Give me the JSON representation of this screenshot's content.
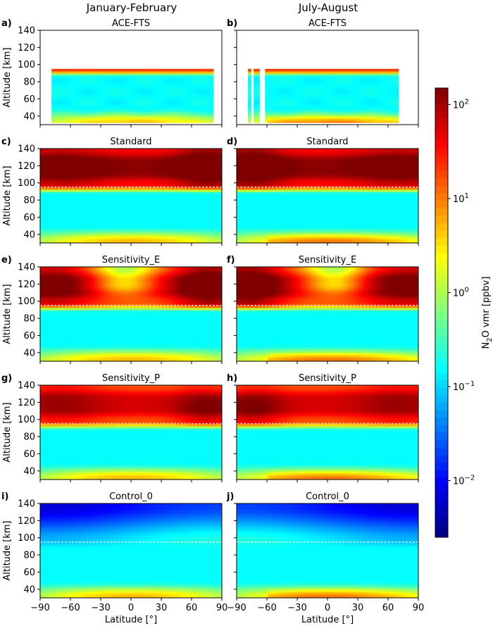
{
  "column_titles": [
    "January-February",
    "July-August"
  ],
  "chart_data": {
    "type": "heatmap",
    "x": [
      -90,
      -60,
      -30,
      0,
      30,
      60,
      90
    ],
    "y": [
      40,
      60,
      80,
      100,
      120,
      140
    ],
    "xlabel": "Latitude [°]",
    "ylabel": "Altitude [km]",
    "xlim": [
      -90,
      90
    ],
    "ylim": [
      30,
      140
    ],
    "xticks": [
      "−90",
      "−60",
      "−30",
      "0",
      "30",
      "60",
      "90"
    ],
    "yticks": [
      "40",
      "60",
      "80",
      "100",
      "120",
      "140"
    ],
    "reference_line_altitude_km": 95,
    "colorbar": {
      "label_main": "N",
      "label_sub": "2",
      "label_rest": "O vmr [ppbv]",
      "scale": "log",
      "range": [
        0.0025,
        150
      ],
      "ticks": [
        {
          "value": 0.01,
          "base": "10",
          "exp": "−2"
        },
        {
          "value": 0.1,
          "base": "10",
          "exp": "−1"
        },
        {
          "value": 1,
          "base": "10",
          "exp": "0"
        },
        {
          "value": 10,
          "base": "10",
          "exp": "1"
        },
        {
          "value": 100,
          "base": "10",
          "exp": "2"
        }
      ]
    },
    "panels": [
      {
        "letter": "a)",
        "title": "ACE-FTS",
        "model": "ace",
        "season": "JF"
      },
      {
        "letter": "b)",
        "title": "ACE-FTS",
        "model": "ace",
        "season": "JA"
      },
      {
        "letter": "c)",
        "title": "Standard",
        "model": "standard",
        "season": "JF"
      },
      {
        "letter": "d)",
        "title": "Standard",
        "model": "standard",
        "season": "JA"
      },
      {
        "letter": "e)",
        "title": "Sensitivity_E",
        "model": "sensE",
        "season": "JF"
      },
      {
        "letter": "f)",
        "title": "Sensitivity_E",
        "model": "sensE",
        "season": "JA"
      },
      {
        "letter": "g)",
        "title": "Sensitivity_P",
        "model": "sensP",
        "season": "JF"
      },
      {
        "letter": "h)",
        "title": "Sensitivity_P",
        "model": "sensP",
        "season": "JA"
      },
      {
        "letter": "i)",
        "title": "Control_0",
        "model": "control",
        "season": "JF"
      },
      {
        "letter": "j)",
        "title": "Control_0",
        "model": "control",
        "season": "JA"
      }
    ]
  }
}
